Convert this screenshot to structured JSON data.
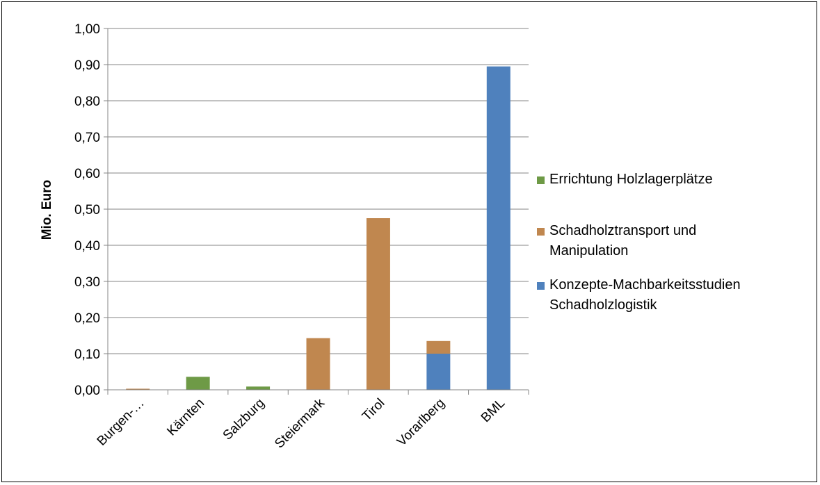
{
  "chart_data": {
    "type": "bar",
    "stacked": true,
    "title": "",
    "xlabel": "",
    "ylabel": "Mio. Euro",
    "ylim": [
      0,
      1.0
    ],
    "yticks": [
      "0,00",
      "0,10",
      "0,20",
      "0,30",
      "0,40",
      "0,50",
      "0,60",
      "0,70",
      "0,80",
      "0,90",
      "1,00"
    ],
    "grid": true,
    "legend_position": "right",
    "categories": [
      "Burgen-…",
      "Kärnten",
      "Salzburg",
      "Steiermark",
      "Tirol",
      "Vorarlberg",
      "BML"
    ],
    "series": [
      {
        "name": "Konzepte-Machbarkeitsstudien\nSchadholzlogistik",
        "color": "#4F81BD",
        "values": [
          0,
          0,
          0,
          0,
          0,
          0.1,
          0.895
        ]
      },
      {
        "name": "Schadholztransport und\nManipulation",
        "color": "#C0874F",
        "values": [
          0.003,
          0,
          0,
          0.143,
          0.475,
          0.035,
          0
        ]
      },
      {
        "name": "Errichtung Holzlagerplätze",
        "color": "#6E9A46",
        "values": [
          0,
          0.036,
          0.009,
          0,
          0,
          0,
          0
        ]
      }
    ],
    "legend_order": [
      2,
      1,
      0
    ]
  }
}
